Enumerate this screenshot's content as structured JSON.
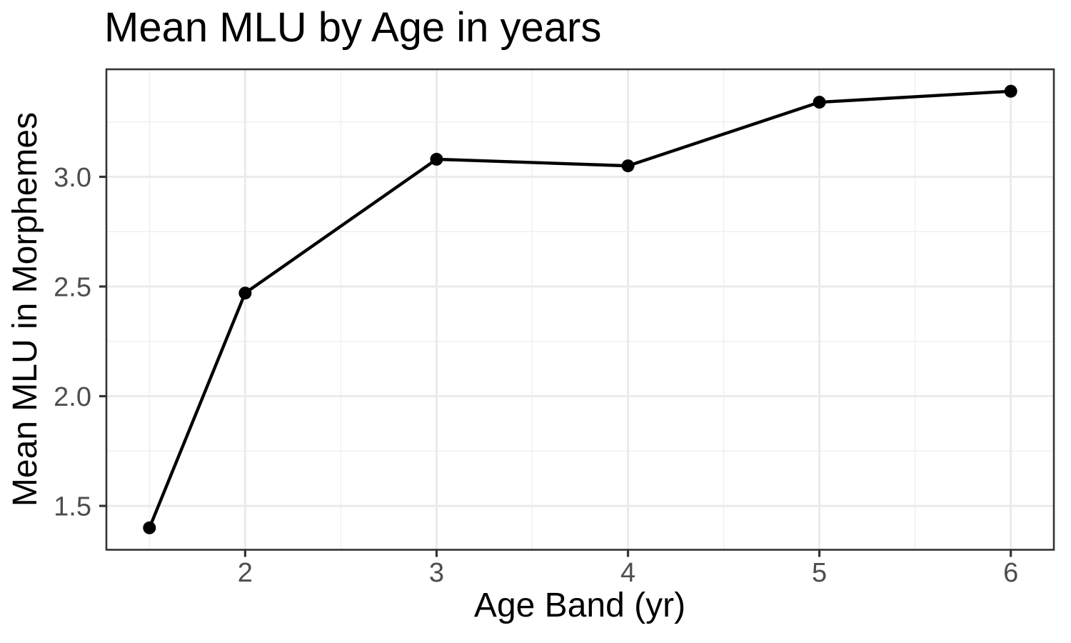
{
  "chart_data": {
    "type": "line",
    "title": "Mean MLU by Age in years",
    "xlabel": "Age Band (yr)",
    "ylabel": "Mean MLU in Morphemes",
    "series": [
      {
        "name": "Mean MLU",
        "x": [
          1.5,
          2,
          3,
          4,
          5,
          6
        ],
        "y": [
          1.4,
          2.47,
          3.08,
          3.05,
          3.34,
          3.39
        ]
      }
    ],
    "xlim": [
      1.275,
      6.225
    ],
    "ylim": [
      1.3,
      3.49
    ],
    "x_major_ticks": [
      2,
      3,
      4,
      5,
      6
    ],
    "x_tick_labels": [
      "2",
      "3",
      "4",
      "5",
      "6"
    ],
    "x_minor_gridlines": [
      1.5,
      2.5,
      3.5,
      4.5,
      5.5
    ],
    "y_major_ticks": [
      1.5,
      2.0,
      2.5,
      3.0
    ],
    "y_tick_labels": [
      "1.5",
      "2.0",
      "2.5",
      "3.0"
    ],
    "y_minor_gridlines": [
      1.75,
      2.25,
      2.75,
      3.25
    ],
    "grid": "major+minor",
    "legend_position": "none",
    "marker": "filled-circle",
    "colors": {
      "line": "#000000",
      "point": "#000000",
      "grid_major": "#ebebeb",
      "grid_minor": "#f0f0f0",
      "panel_border": "#333333",
      "tick_mark": "#333333",
      "tick_label": "#4d4d4d",
      "title": "#000000",
      "axis_title": "#000000",
      "background": "#ffffff"
    }
  }
}
